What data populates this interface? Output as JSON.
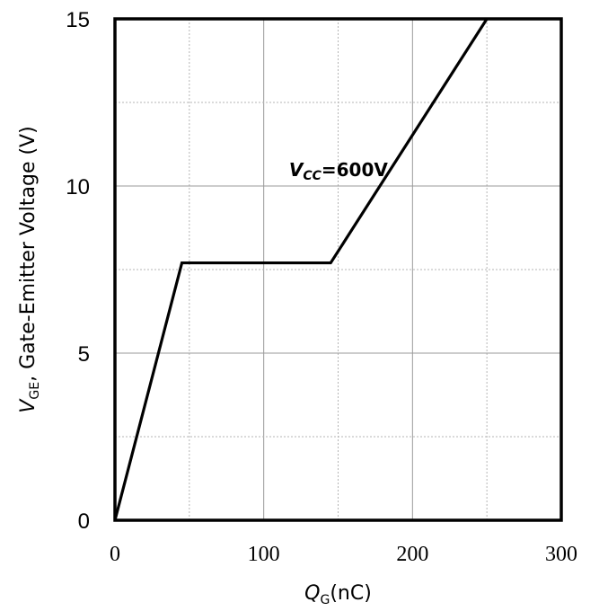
{
  "chart_data": {
    "type": "line",
    "xlabel": {
      "main": "Q",
      "sub": "G",
      "suffix": "(nC)"
    },
    "ylabel": {
      "main": "V",
      "sub": "GE",
      "suffix": ", Gate-Emitter Voltage (V)"
    },
    "xlim": [
      0,
      300
    ],
    "ylim": [
      0,
      15
    ],
    "xticks": [
      "0",
      "100",
      "200",
      "300"
    ],
    "yticks": [
      "0",
      "5",
      "10",
      "15"
    ],
    "x_minor_step": 50,
    "y_minor_step": 2.5,
    "grid": true,
    "series": [
      {
        "x": [
          0,
          45,
          145,
          250
        ],
        "y": [
          0,
          7.7,
          7.7,
          15
        ]
      }
    ],
    "annotations": [
      {
        "main": "V",
        "sub": "CC",
        "suffix": "=600V",
        "x": 117,
        "y": 10.3
      }
    ]
  }
}
